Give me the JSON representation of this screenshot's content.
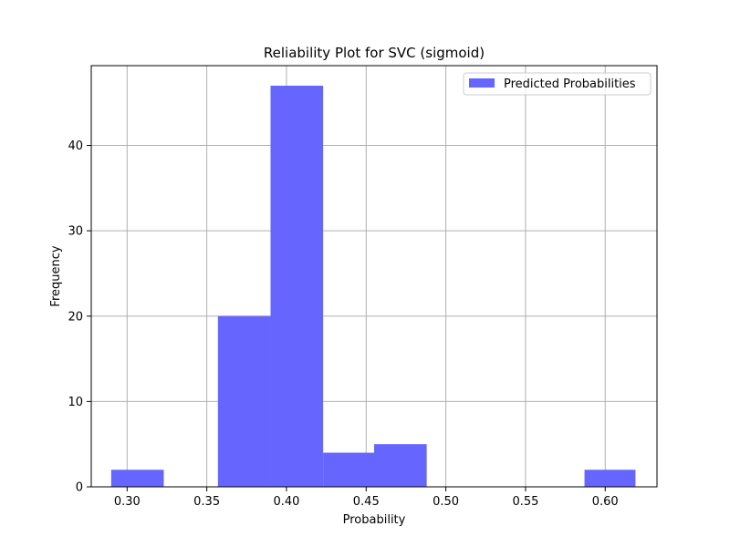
{
  "chart_data": {
    "type": "bar",
    "title": "Reliability Plot for SVC (sigmoid)",
    "xlabel": "Probability",
    "ylabel": "Frequency",
    "xlim": [
      0.2775,
      0.6325
    ],
    "ylim": [
      0,
      49.35
    ],
    "xticks": [
      0.3,
      0.35,
      0.4,
      0.45,
      0.5,
      0.55,
      0.6
    ],
    "xtick_labels": [
      "0.30",
      "0.35",
      "0.40",
      "0.45",
      "0.50",
      "0.55",
      "0.60"
    ],
    "yticks": [
      0,
      10,
      20,
      30,
      40
    ],
    "ytick_labels": [
      "0",
      "10",
      "20",
      "30",
      "40"
    ],
    "grid": true,
    "legend_position": "top-right",
    "series": [
      {
        "name": "Predicted Probabilities",
        "color": "#6666ff",
        "bin_edges": [
          0.29,
          0.323,
          0.357,
          0.39,
          0.423,
          0.455,
          0.488,
          0.521,
          0.554,
          0.587,
          0.619
        ],
        "counts": [
          2,
          0,
          20,
          47,
          4,
          5,
          0,
          0,
          0,
          2
        ]
      }
    ]
  }
}
